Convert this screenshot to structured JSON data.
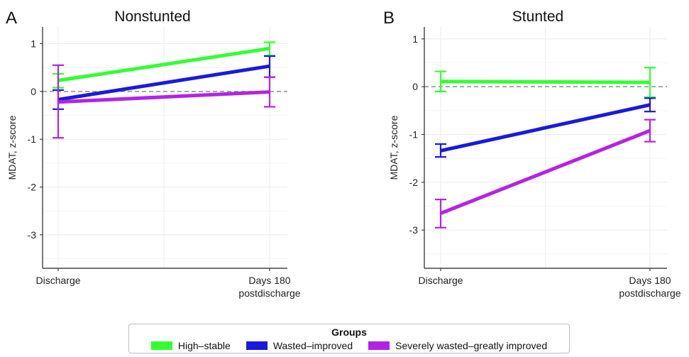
{
  "chart_data": [
    {
      "type": "line",
      "panel_letter": "A",
      "title": "Nonstunted",
      "ylabel": "MDAT, z-score",
      "categories": [
        "Discharge",
        "Days 180\npostdischarge"
      ],
      "ylim": [
        -3.7,
        1.35
      ],
      "yticks": [
        1,
        0,
        -1,
        -2,
        -3
      ],
      "reference_line": 0,
      "series": [
        {
          "name": "High–stable",
          "color": "#33ff33",
          "values": [
            0.23,
            0.9
          ],
          "lower": [
            0.08,
            0.75
          ],
          "upper": [
            0.37,
            1.03
          ]
        },
        {
          "name": "Wasted–improved",
          "color": "#1a1adb",
          "values": [
            -0.17,
            0.53
          ],
          "lower": [
            -0.37,
            0.3
          ],
          "upper": [
            0.03,
            0.74
          ]
        },
        {
          "name": "Severely wasted–greatly improved",
          "color": "#b323e6",
          "values": [
            -0.22,
            -0.01
          ],
          "lower": [
            -0.97,
            -0.32
          ],
          "upper": [
            0.55,
            0.3
          ]
        }
      ]
    },
    {
      "type": "line",
      "panel_letter": "B",
      "title": "Stunted",
      "ylabel": "MDAT, z-score",
      "categories": [
        "Discharge",
        "Days 180\npostdischarge"
      ],
      "ylim": [
        -3.8,
        1.25
      ],
      "yticks": [
        1,
        0,
        -1,
        -2,
        -3
      ],
      "reference_line": 0,
      "series": [
        {
          "name": "High–stable",
          "color": "#33ff33",
          "values": [
            0.11,
            0.09
          ],
          "lower": [
            -0.1,
            -0.22
          ],
          "upper": [
            0.32,
            0.4
          ]
        },
        {
          "name": "Wasted–improved",
          "color": "#1a1adb",
          "values": [
            -1.34,
            -0.38
          ],
          "lower": [
            -1.47,
            -0.52
          ],
          "upper": [
            -1.2,
            -0.24
          ]
        },
        {
          "name": "Severely wasted–greatly improved",
          "color": "#b323e6",
          "values": [
            -2.65,
            -0.92
          ],
          "lower": [
            -2.95,
            -1.15
          ],
          "upper": [
            -2.36,
            -0.69
          ]
        }
      ]
    }
  ],
  "legend": {
    "title": "Groups",
    "items": [
      {
        "label": "High–stable",
        "color": "#33ff33"
      },
      {
        "label": "Wasted–improved",
        "color": "#1a1adb"
      },
      {
        "label": "Severely wasted–greatly improved",
        "color": "#b323e6"
      }
    ]
  }
}
